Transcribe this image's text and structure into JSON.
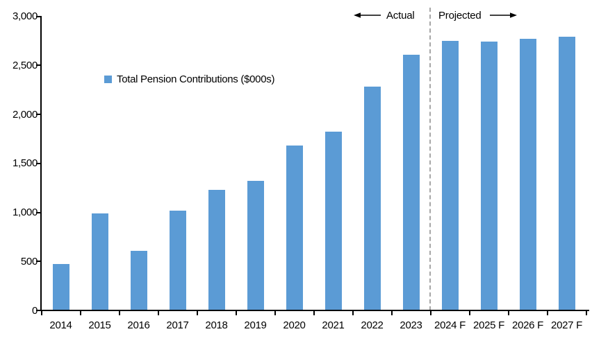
{
  "chart_data": {
    "type": "bar",
    "title": "",
    "legend": "Total Pension Contributions ($000s)",
    "categories": [
      "2014",
      "2015",
      "2016",
      "2017",
      "2018",
      "2019",
      "2020",
      "2021",
      "2022",
      "2023",
      "2024 F",
      "2025 F",
      "2026 F",
      "2027 F"
    ],
    "values": [
      470,
      990,
      610,
      1020,
      1230,
      1320,
      1680,
      1820,
      2280,
      2610,
      2750,
      2740,
      2770,
      2790
    ],
    "ylim": [
      0,
      3000
    ],
    "ytick_step": 500,
    "ytick_labels": [
      "0",
      "500",
      "1,000",
      "1,500",
      "2,000",
      "2,500",
      "3,000"
    ],
    "grid": false,
    "legend_position": "inside-upper-left",
    "annotations": {
      "actual_label": "Actual",
      "projected_label": "Projected",
      "divider_after_category": "2023"
    },
    "colors": {
      "bar": "#5B9BD5",
      "divider": "#A6A6A6",
      "axis": "#000000",
      "text": "#000000"
    }
  }
}
